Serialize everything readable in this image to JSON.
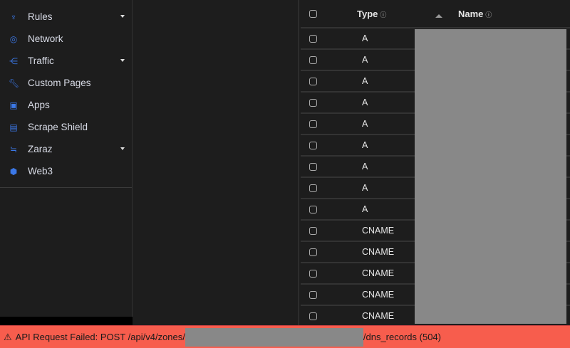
{
  "sidebar": {
    "items": [
      {
        "label": "Rules",
        "icon": "funnel-icon",
        "glyph": "♆",
        "dropdown": true
      },
      {
        "label": "Network",
        "icon": "location-pin-icon",
        "glyph": "◎",
        "dropdown": false
      },
      {
        "label": "Traffic",
        "icon": "network-nodes-icon",
        "glyph": "⋲",
        "dropdown": true
      },
      {
        "label": "Custom Pages",
        "icon": "wrench-icon",
        "glyph": "🔧︎",
        "dropdown": false
      },
      {
        "label": "Apps",
        "icon": "apps-icon",
        "glyph": "▣",
        "dropdown": false
      },
      {
        "label": "Scrape Shield",
        "icon": "document-icon",
        "glyph": "▤",
        "dropdown": false
      },
      {
        "label": "Zaraz",
        "icon": "zaraz-icon",
        "glyph": "≒",
        "dropdown": true
      },
      {
        "label": "Web3",
        "icon": "web3-icon",
        "glyph": "⬢",
        "dropdown": false
      }
    ]
  },
  "table": {
    "headers": {
      "type": "Type",
      "name": "Name",
      "info": "ⓘ"
    },
    "rows": [
      "A",
      "A",
      "A",
      "A",
      "A",
      "A",
      "A",
      "A",
      "A",
      "CNAME",
      "CNAME",
      "CNAME",
      "CNAME",
      "CNAME"
    ]
  },
  "error": {
    "icon": "warning-icon",
    "glyph": "⚠",
    "prefix": "API Request Failed: POST /api/v4/zones/",
    "suffix": "/dns_records (504)"
  },
  "colors": {
    "accent": "#3b78e7",
    "error": "#f75d4d",
    "redaction": "#888888"
  }
}
